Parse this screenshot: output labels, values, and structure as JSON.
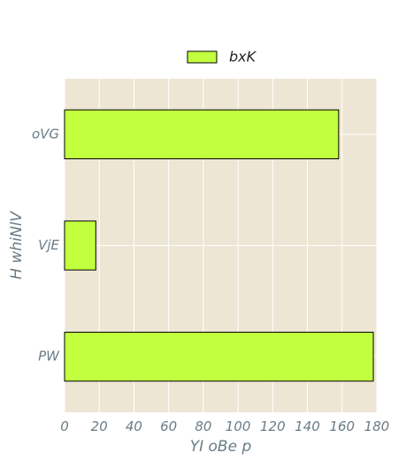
{
  "chart_data": {
    "type": "bar",
    "orientation": "horizontal",
    "categories": [
      "oVG",
      "VjE",
      "PW"
    ],
    "series": [
      {
        "name": "bxK",
        "values": [
          158,
          18,
          178
        ]
      }
    ],
    "title": "",
    "xlabel": "YI oBe p",
    "ylabel": "H whiNlV",
    "xlim": [
      0,
      180
    ],
    "xticks": [
      0,
      20,
      40,
      60,
      80,
      100,
      120,
      140,
      160,
      180
    ],
    "grid": true,
    "legend_position": "top-center",
    "colors": {
      "plot_background": "#EEE6D4",
      "bar_fill": "#C2FF3F",
      "bar_edge": "#000000",
      "grid": "#FFFFFF",
      "text": "#6A7C87"
    }
  }
}
